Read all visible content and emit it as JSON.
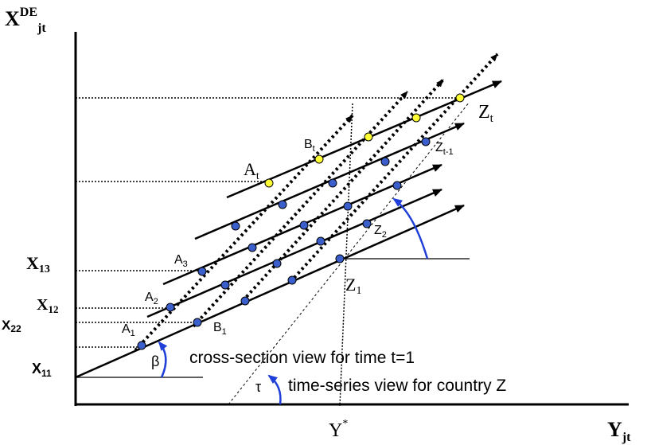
{
  "axes": {
    "y_axis_label": "X",
    "y_axis_superscript": "DE",
    "y_axis_subscript": "jt",
    "x_axis_label": "Y",
    "x_axis_subscript": "jt"
  },
  "left_labels": {
    "x13": "X",
    "x13_sub": "13",
    "x12": "X",
    "x12_sub": "12",
    "x22": "X",
    "x22_sub": "22",
    "x11": "X",
    "x11_sub": "11"
  },
  "point_labels": {
    "A1": "A",
    "A1_sub": "1",
    "A2": "A",
    "A2_sub": "2",
    "A3": "A",
    "A3_sub": "3",
    "At": "A",
    "At_sub": "t",
    "B1": "B",
    "B1_sub": "1",
    "Bt": "B",
    "Bt_sub": "t",
    "Z1": "Z",
    "Z1_sub": "1",
    "Z2": "Z",
    "Z2_sub": "2",
    "Zt1": "Z",
    "Zt1_sub": "t-1",
    "Zt": "Z",
    "Zt_sub": "t"
  },
  "ystar": {
    "label": "Y",
    "sup": "*"
  },
  "angles": {
    "beta": "β",
    "tau": "τ"
  },
  "annotations": {
    "cross_section": "cross-section view for time t=1",
    "time_series": "time-series view for country Z"
  },
  "colors": {
    "blue_point": "#3a5fcd",
    "yellow_point": "#ffff33",
    "arc": "#1f3fd8"
  }
}
